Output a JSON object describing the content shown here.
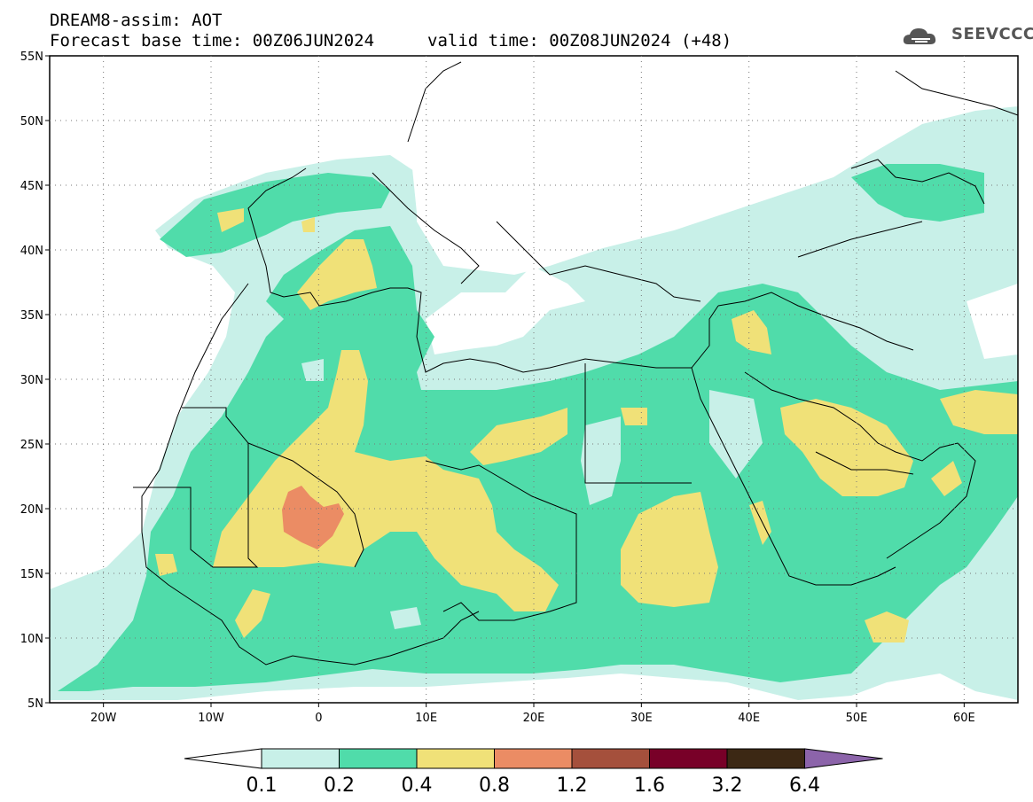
{
  "header": {
    "model": "DREAM8-assim: AOT",
    "base_time": "Forecast base time: 00Z06JUN2024",
    "valid_time": "valid time: 00Z08JUN2024 (+48)"
  },
  "logo": {
    "text": "SEEVCCC",
    "icon": "cloud-icon"
  },
  "axes": {
    "lat_labels": [
      "55N",
      "50N",
      "45N",
      "40N",
      "35N",
      "30N",
      "25N",
      "20N",
      "15N",
      "10N",
      "5N"
    ],
    "lon_labels": [
      "20W",
      "10W",
      "0",
      "10E",
      "20E",
      "30E",
      "40E",
      "50E",
      "60E"
    ],
    "lat_range": [
      5,
      55
    ],
    "lon_range": [
      -25,
      65
    ]
  },
  "colorbar": {
    "levels": [
      "0.1",
      "0.2",
      "0.4",
      "0.8",
      "1.2",
      "1.6",
      "3.2",
      "6.4"
    ],
    "colors": [
      "#c8f0e8",
      "#50dcaa",
      "#f0e178",
      "#eb8c64",
      "#a5503c",
      "#780028",
      "#3c2814",
      "#8c64aa"
    ]
  }
}
